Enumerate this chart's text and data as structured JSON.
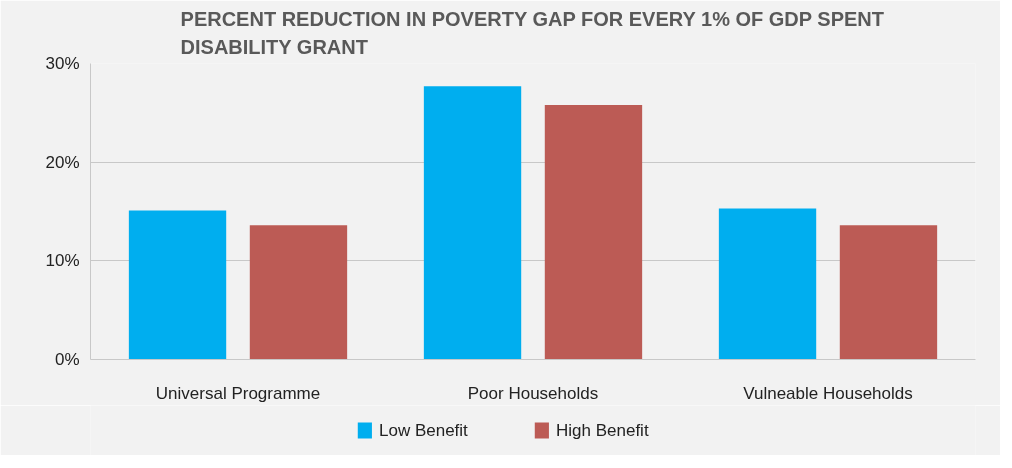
{
  "chart_data": {
    "type": "bar",
    "title": "PERCENT REDUCTION IN POVERTY GAP FOR EVERY 1% OF GDP SPENT\nDISABILITY GRANT",
    "categories": [
      "Universal Programme",
      "Poor Households",
      "Vulneable Households"
    ],
    "series": [
      {
        "name": "Low Benefit",
        "color": "#00aeef",
        "values": [
          15.1,
          27.7,
          15.3
        ]
      },
      {
        "name": "High Benefit",
        "color": "#bc5b55",
        "values": [
          13.6,
          25.8,
          13.6
        ]
      }
    ],
    "ylim": [
      0,
      30
    ],
    "yticks": [
      {
        "value": 0,
        "label": "0%"
      },
      {
        "value": 10,
        "label": "10%"
      },
      {
        "value": 20,
        "label": "20%"
      },
      {
        "value": 30,
        "label": "30%"
      }
    ],
    "grid": "y",
    "legend": "bottom"
  }
}
